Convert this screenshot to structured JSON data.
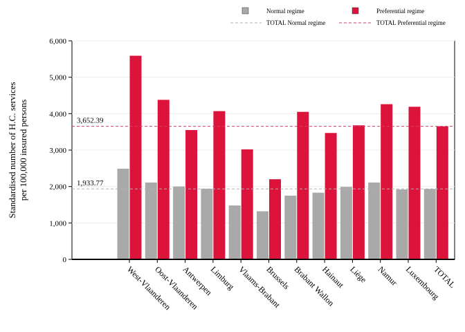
{
  "chart_data": {
    "type": "bar",
    "title": "",
    "xlabel": "",
    "ylabel_lines": [
      "Standardised number of H.C. services",
      "per 100,000 insured persons"
    ],
    "ylim": [
      0,
      6000
    ],
    "yticks": [
      0,
      1000,
      2000,
      3000,
      4000,
      5000,
      6000
    ],
    "ytick_labels": [
      "0",
      "1,000",
      "2,000",
      "3,000",
      "4,000",
      "5,000",
      "6,000"
    ],
    "grid": true,
    "legend_position": "top-right",
    "categories": [
      "West-Vlaanderen",
      "Oost-Vlaanderen",
      "Antwerpen",
      "Limburg",
      "Vlaams-Brabant",
      "Brussels",
      "Brabant Wallon",
      "Hainaut",
      "Liège",
      "Namur",
      "Luxembourg",
      "TOTAL"
    ],
    "series": [
      {
        "name": "Normal regime",
        "color": "#a9a9a9",
        "values": [
          2490,
          2110,
          2000,
          1940,
          1480,
          1320,
          1750,
          1830,
          1990,
          2110,
          1920,
          1933.77
        ]
      },
      {
        "name": "Preferential regime",
        "color": "#dc143c",
        "values": [
          5590,
          4380,
          3550,
          4070,
          3020,
          2200,
          4050,
          3470,
          3680,
          4260,
          4190,
          3652.39
        ]
      }
    ],
    "reference_lines": [
      {
        "name": "TOTAL Normal regime",
        "value": 1933.77,
        "label": "1,933.77",
        "color": "#b0b0b0",
        "style": "dashed"
      },
      {
        "name": "TOTAL Preferential regime",
        "value": 3652.39,
        "label": "3,652.39",
        "color": "#d63a6a",
        "style": "dashed"
      }
    ]
  }
}
